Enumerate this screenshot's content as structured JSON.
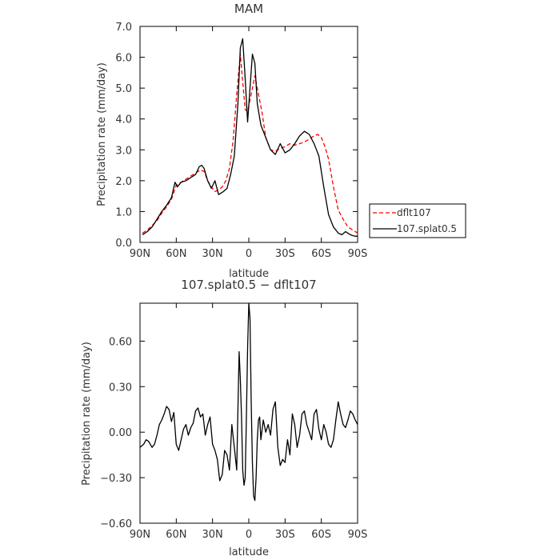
{
  "chart_data": [
    {
      "type": "line",
      "title": "MAM",
      "xlabel": "latitude",
      "ylabel": "Precipitation rate (mm/day)",
      "xlim": [
        90,
        -90
      ],
      "ylim": [
        0,
        7
      ],
      "x_ticks": [
        {
          "value": 90,
          "label": "90N"
        },
        {
          "value": 60,
          "label": "60N"
        },
        {
          "value": 30,
          "label": "30N"
        },
        {
          "value": 0,
          "label": "0"
        },
        {
          "value": -30,
          "label": "30S"
        },
        {
          "value": -60,
          "label": "60S"
        },
        {
          "value": -90,
          "label": "90S"
        }
      ],
      "y_ticks": [
        {
          "value": 0,
          "label": "0.0"
        },
        {
          "value": 1,
          "label": "1.0"
        },
        {
          "value": 2,
          "label": "2.0"
        },
        {
          "value": 3,
          "label": "3.0"
        },
        {
          "value": 4,
          "label": "4.0"
        },
        {
          "value": 5,
          "label": "5.0"
        },
        {
          "value": 6,
          "label": "6.0"
        },
        {
          "value": 7,
          "label": "7.0"
        }
      ],
      "legend": "outside-right",
      "series": [
        {
          "name": "dflt107",
          "color": "#ff0000",
          "dash": "dashed",
          "x": [
            88,
            84,
            80,
            76,
            72,
            68,
            64,
            60,
            56,
            52,
            48,
            44,
            40,
            37,
            34,
            31,
            28,
            25,
            22,
            19,
            16,
            13,
            10,
            7,
            5,
            3,
            1,
            -2,
            -5,
            -8,
            -11,
            -14,
            -18,
            -22,
            -26,
            -30,
            -34,
            -38,
            -42,
            -46,
            -50,
            -54,
            -57,
            -60,
            -63,
            -66,
            -70,
            -74,
            -78,
            -82,
            -86,
            -90
          ],
          "y": [
            0.3,
            0.4,
            0.55,
            0.7,
            0.95,
            1.15,
            1.4,
            1.85,
            1.95,
            2.05,
            2.15,
            2.25,
            2.35,
            2.3,
            2.0,
            1.8,
            1.65,
            1.7,
            1.8,
            2.0,
            2.4,
            3.3,
            4.8,
            6.1,
            5.2,
            4.3,
            4.25,
            4.8,
            5.4,
            4.8,
            4.2,
            3.4,
            3.0,
            2.95,
            3.05,
            3.1,
            3.2,
            3.15,
            3.2,
            3.25,
            3.35,
            3.45,
            3.5,
            3.4,
            3.1,
            2.7,
            1.8,
            1.05,
            0.75,
            0.5,
            0.4,
            0.3
          ]
        },
        {
          "name": "107.splat0.5",
          "color": "#000000",
          "dash": "solid",
          "x": [
            88,
            84,
            80,
            76,
            72,
            68,
            64,
            61,
            59,
            56,
            52,
            48,
            44,
            41,
            39,
            37,
            34,
            31,
            28,
            25,
            21,
            18,
            15,
            12,
            9,
            7,
            5,
            3,
            1,
            -1,
            -3,
            -5,
            -7,
            -10,
            -14,
            -18,
            -22,
            -26,
            -28,
            -30,
            -34,
            -38,
            -42,
            -46,
            -50,
            -54,
            -56,
            -58,
            -62,
            -66,
            -70,
            -74,
            -77,
            -80,
            -82,
            -84,
            -86,
            -88,
            -90
          ],
          "y": [
            0.25,
            0.35,
            0.5,
            0.75,
            1.0,
            1.2,
            1.45,
            1.95,
            1.8,
            1.95,
            2.0,
            2.1,
            2.2,
            2.45,
            2.5,
            2.4,
            2.0,
            1.75,
            2.0,
            1.55,
            1.65,
            1.75,
            2.2,
            2.8,
            4.5,
            6.3,
            6.6,
            5.3,
            3.9,
            5.0,
            6.1,
            5.8,
            4.5,
            3.8,
            3.4,
            3.0,
            2.85,
            3.2,
            3.05,
            2.9,
            3.0,
            3.2,
            3.45,
            3.6,
            3.5,
            3.2,
            3.0,
            2.8,
            1.8,
            0.9,
            0.5,
            0.3,
            0.25,
            0.35,
            0.3,
            0.25,
            0.22,
            0.2,
            0.2
          ]
        }
      ]
    },
    {
      "type": "line",
      "title": "107.splat0.5 − dflt107",
      "xlabel": "latitude",
      "ylabel": "Precipitation rate (mm/day)",
      "xlim": [
        90,
        -90
      ],
      "ylim": [
        -0.6,
        0.85
      ],
      "x_ticks": [
        {
          "value": 90,
          "label": "90N"
        },
        {
          "value": 60,
          "label": "60N"
        },
        {
          "value": 30,
          "label": "30N"
        },
        {
          "value": 0,
          "label": "0"
        },
        {
          "value": -30,
          "label": "30S"
        },
        {
          "value": -60,
          "label": "60S"
        },
        {
          "value": -90,
          "label": "90S"
        }
      ],
      "y_ticks": [
        {
          "value": -0.6,
          "label": "−0.60"
        },
        {
          "value": -0.3,
          "label": "−0.30"
        },
        {
          "value": 0,
          "label": "0.00"
        },
        {
          "value": 0.3,
          "label": "0.30"
        },
        {
          "value": 0.6,
          "label": "0.60"
        }
      ],
      "series": [
        {
          "name": "",
          "color": "#000000",
          "dash": "solid",
          "x": [
            90,
            87,
            85,
            83,
            80,
            78,
            76,
            74,
            72,
            70,
            68,
            66,
            64,
            62,
            60,
            58,
            56,
            54,
            52,
            50,
            48,
            46,
            44,
            42,
            40,
            38,
            36,
            34,
            32,
            30,
            28,
            26,
            24,
            22,
            20,
            18,
            16,
            14,
            12,
            10,
            9,
            8,
            7,
            6,
            5,
            4,
            3,
            2,
            1,
            0,
            -1,
            -2,
            -3,
            -4,
            -5,
            -6,
            -7,
            -8,
            -9,
            -10,
            -12,
            -14,
            -16,
            -18,
            -20,
            -22,
            -24,
            -26,
            -28,
            -30,
            -32,
            -34,
            -36,
            -38,
            -40,
            -42,
            -44,
            -46,
            -48,
            -50,
            -52,
            -54,
            -56,
            -58,
            -60,
            -62,
            -64,
            -66,
            -68,
            -70,
            -72,
            -74,
            -76,
            -78,
            -80,
            -82,
            -84,
            -86,
            -88,
            -90
          ],
          "y": [
            -0.1,
            -0.08,
            -0.05,
            -0.06,
            -0.1,
            -0.08,
            -0.02,
            0.05,
            0.08,
            0.12,
            0.17,
            0.15,
            0.07,
            0.13,
            -0.08,
            -0.12,
            -0.05,
            0.02,
            0.05,
            -0.02,
            0.03,
            0.06,
            0.14,
            0.16,
            0.1,
            0.12,
            -0.02,
            0.05,
            0.1,
            -0.08,
            -0.12,
            -0.18,
            -0.32,
            -0.28,
            -0.12,
            -0.15,
            -0.25,
            0.05,
            -0.1,
            -0.25,
            0.15,
            0.53,
            0.35,
            0.1,
            -0.25,
            -0.35,
            -0.3,
            0.1,
            0.55,
            0.85,
            0.75,
            0.2,
            -0.2,
            -0.42,
            -0.45,
            -0.3,
            -0.05,
            0.08,
            0.1,
            -0.05,
            0.08,
            0.0,
            0.05,
            -0.02,
            0.15,
            0.2,
            -0.1,
            -0.22,
            -0.18,
            -0.2,
            -0.05,
            -0.15,
            0.12,
            0.05,
            -0.1,
            -0.02,
            0.12,
            0.14,
            0.05,
            0.0,
            -0.05,
            0.12,
            0.15,
            0.02,
            -0.05,
            0.05,
            0.0,
            -0.08,
            -0.1,
            -0.05,
            0.08,
            0.2,
            0.12,
            0.05,
            0.03,
            0.08,
            0.14,
            0.12,
            0.08,
            0.05
          ]
        }
      ]
    }
  ]
}
